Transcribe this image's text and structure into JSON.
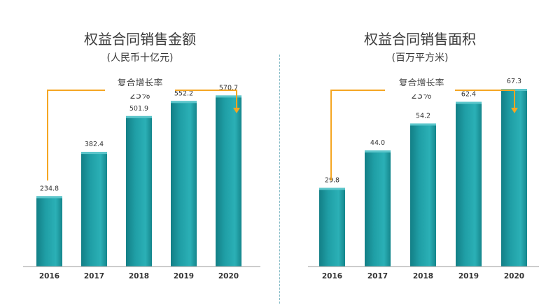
{
  "colors": {
    "bar": "#1f9ea5",
    "arrow": "#f5a623",
    "axis": "#9a9a9a"
  },
  "chart_data": [
    {
      "type": "bar",
      "title": "权益合同销售金额",
      "subtitle": "(人民币十亿元)",
      "categories": [
        "2016",
        "2017",
        "2018",
        "2019",
        "2020"
      ],
      "values": [
        234.8,
        382.4,
        501.9,
        552.2,
        570.7
      ],
      "value_labels": [
        "234.8",
        "382.4",
        "501.9",
        "552.2",
        "570.7"
      ],
      "ylim": [
        0,
        700
      ],
      "annotation": {
        "label": "复合增长率",
        "value": "25%"
      }
    },
    {
      "type": "bar",
      "title": "权益合同销售面积",
      "subtitle": "(百万平方米)",
      "categories": [
        "2016",
        "2017",
        "2018",
        "2019",
        "2020"
      ],
      "values": [
        29.8,
        44.0,
        54.2,
        62.4,
        67.3
      ],
      "value_labels": [
        "29.8",
        "44.0",
        "54.2",
        "62.4",
        "67.3"
      ],
      "ylim": [
        0,
        79.5
      ],
      "annotation": {
        "label": "复合增长率",
        "value": "23%"
      }
    }
  ]
}
